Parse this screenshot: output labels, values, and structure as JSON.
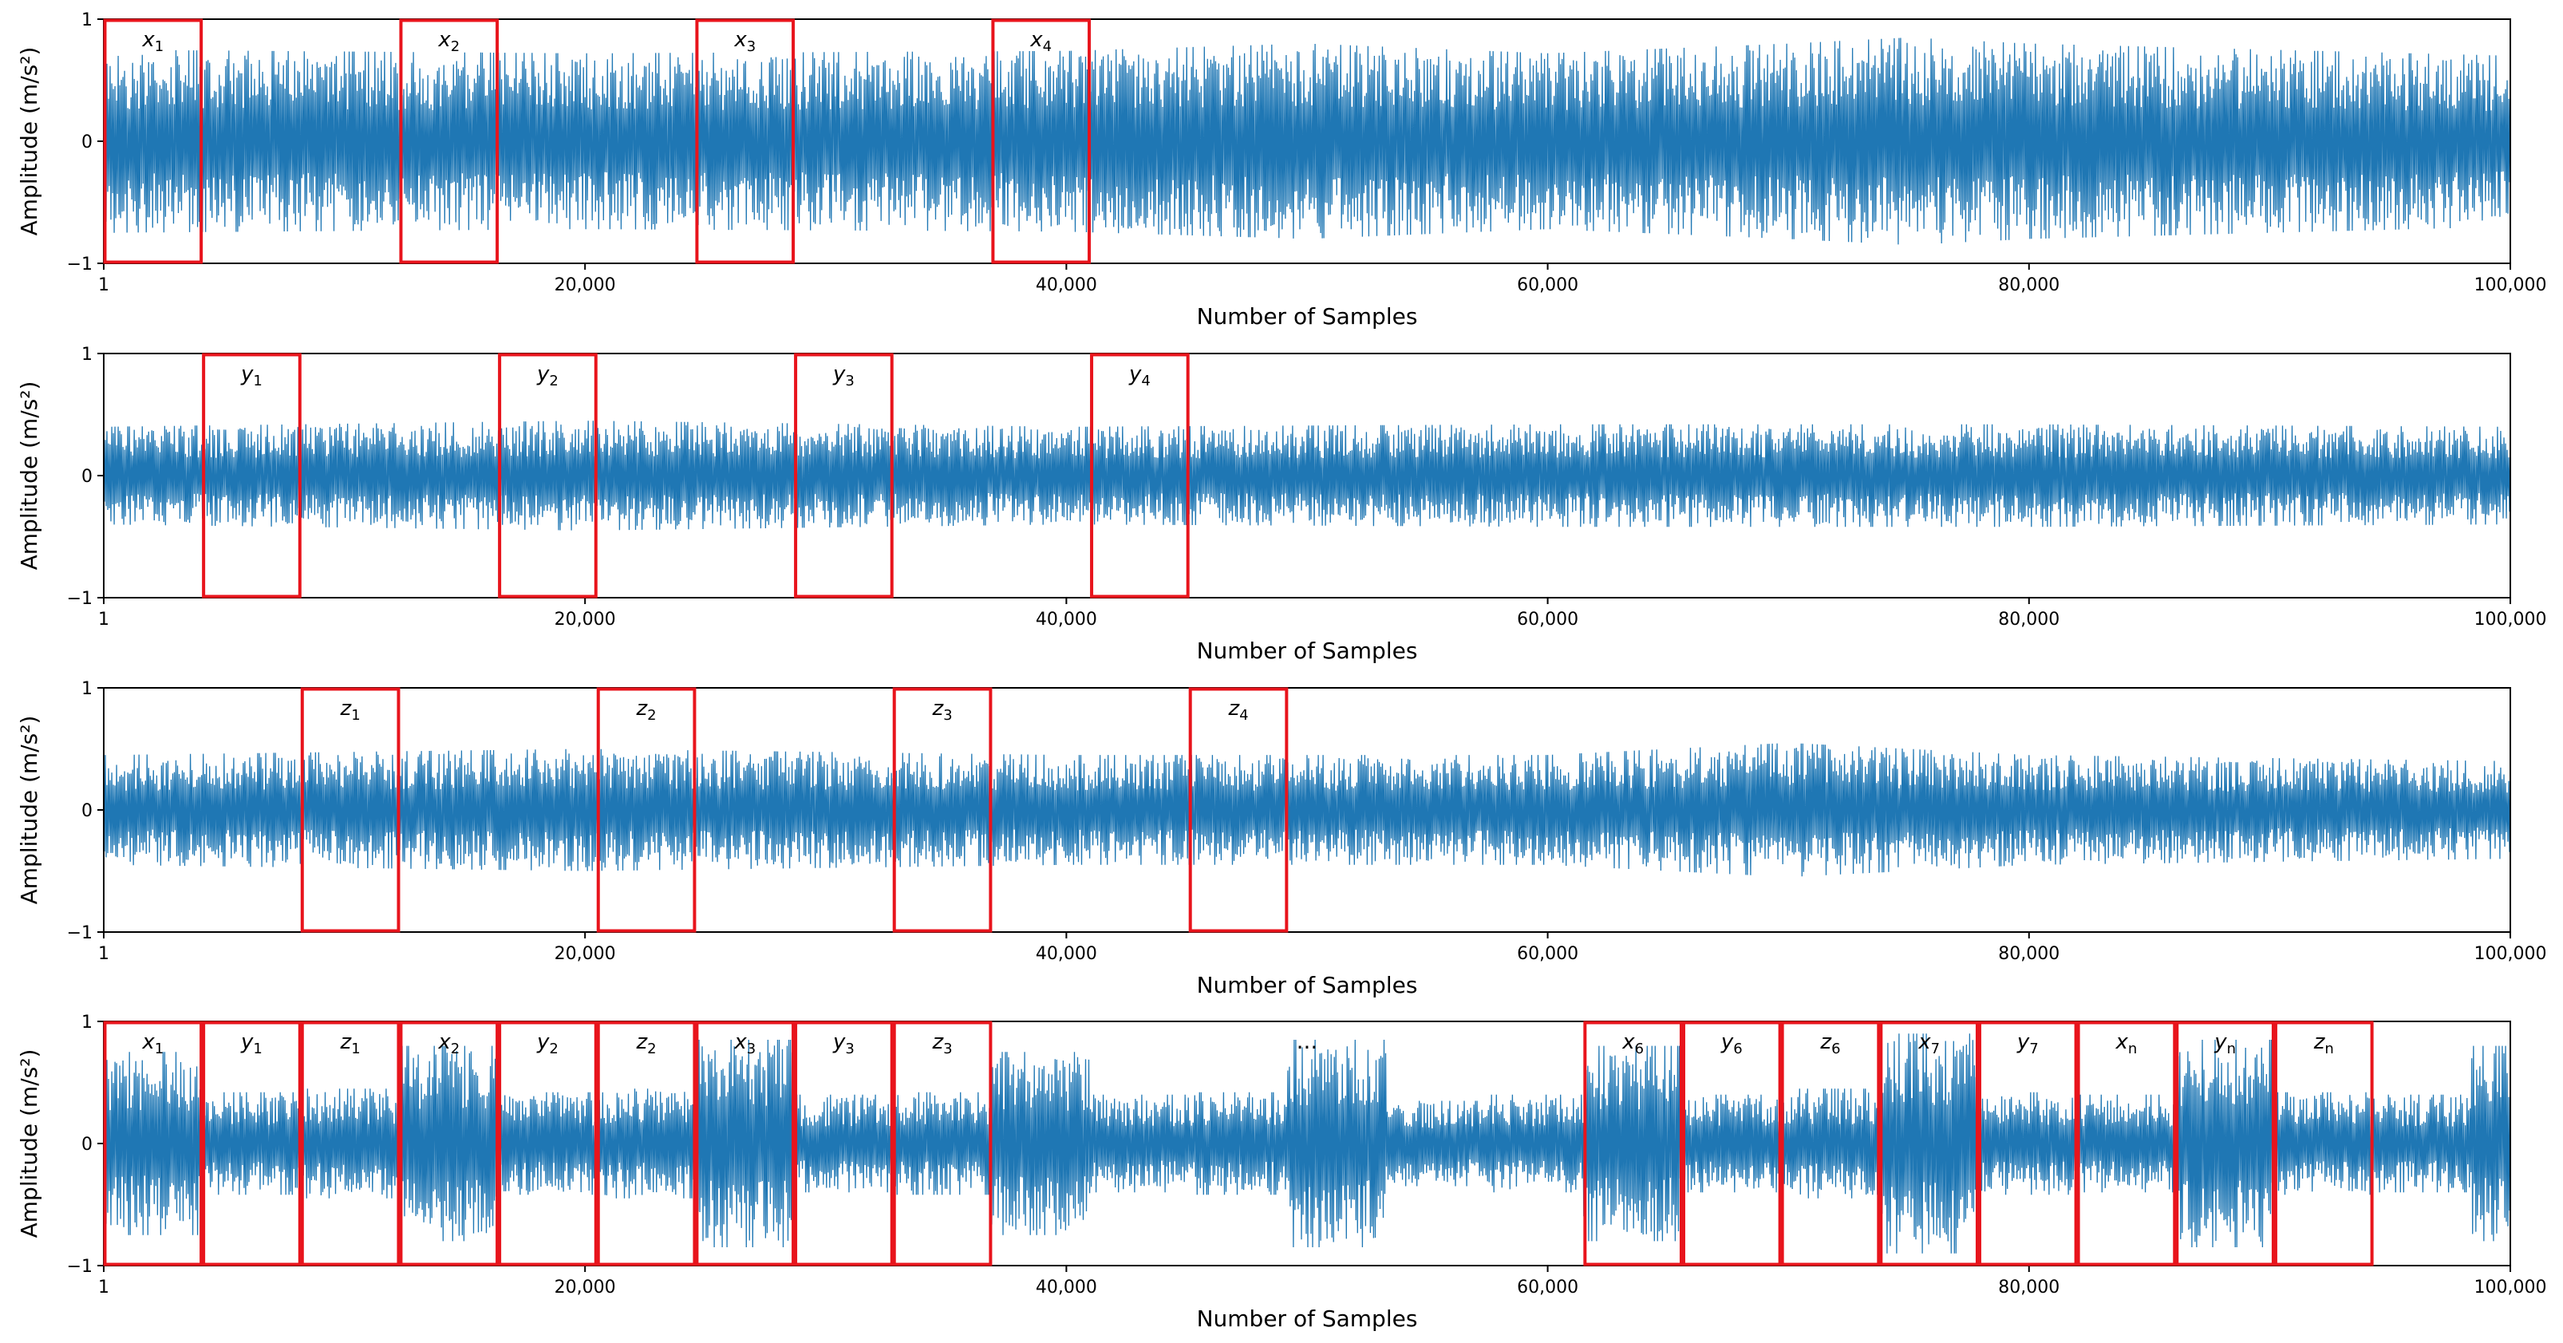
{
  "colors": {
    "signal": "#1f77b4",
    "box": "#e8141c",
    "axes": "#000000"
  },
  "chart_data": [
    {
      "type": "line",
      "title": "",
      "xlabel": "Number of Samples",
      "ylabel": "Amplitude (m/s²)",
      "xlim": [
        1,
        100000
      ],
      "ylim": [
        -1,
        1
      ],
      "xticks": [
        "1",
        "20,000",
        "40,000",
        "60,000",
        "80,000",
        "100,000"
      ],
      "xtick_values": [
        1,
        20000,
        40000,
        60000,
        80000,
        100000
      ],
      "yticks": [
        "−1",
        "0",
        "1"
      ],
      "ytick_values": [
        -1,
        0,
        1
      ],
      "signal_envelope": {
        "x": [
          1,
          20000,
          40000,
          50000,
          60000,
          70000,
          75000,
          80000,
          90000,
          100000
        ],
        "amp": [
          0.75,
          0.72,
          0.74,
          0.8,
          0.72,
          0.8,
          0.85,
          0.8,
          0.75,
          0.7
        ]
      },
      "windows": [
        {
          "var": "x",
          "sub": "1",
          "start": 1,
          "end": 4100
        },
        {
          "var": "x",
          "sub": "2",
          "start": 12300,
          "end": 16400
        },
        {
          "var": "x",
          "sub": "3",
          "start": 24600,
          "end": 28700
        },
        {
          "var": "x",
          "sub": "4",
          "start": 36900,
          "end": 41000
        }
      ]
    },
    {
      "type": "line",
      "title": "",
      "xlabel": "Number of Samples",
      "ylabel": "Amplitude (m/s²)",
      "xlim": [
        1,
        100000
      ],
      "ylim": [
        -1,
        1
      ],
      "xticks": [
        "1",
        "20,000",
        "40,000",
        "60,000",
        "80,000",
        "100,000"
      ],
      "xtick_values": [
        1,
        20000,
        40000,
        60000,
        80000,
        100000
      ],
      "yticks": [
        "−1",
        "0",
        "1"
      ],
      "ytick_values": [
        -1,
        0,
        1
      ],
      "signal_envelope": {
        "x": [
          1,
          20000,
          40000,
          60000,
          80000,
          100000
        ],
        "amp": [
          0.4,
          0.45,
          0.4,
          0.42,
          0.42,
          0.4
        ]
      },
      "windows": [
        {
          "var": "y",
          "sub": "1",
          "start": 4100,
          "end": 8200
        },
        {
          "var": "y",
          "sub": "2",
          "start": 16400,
          "end": 20500
        },
        {
          "var": "y",
          "sub": "3",
          "start": 28700,
          "end": 32800
        },
        {
          "var": "y",
          "sub": "4",
          "start": 41000,
          "end": 45100
        }
      ]
    },
    {
      "type": "line",
      "title": "",
      "xlabel": "Number of Samples",
      "ylabel": "Amplitude (m/s²)",
      "xlim": [
        1,
        100000
      ],
      "ylim": [
        -1,
        1
      ],
      "xticks": [
        "1",
        "20,000",
        "40,000",
        "60,000",
        "80,000",
        "100,000"
      ],
      "xtick_values": [
        1,
        20000,
        40000,
        60000,
        80000,
        100000
      ],
      "yticks": [
        "−1",
        "0",
        "1"
      ],
      "ytick_values": [
        -1,
        0,
        1
      ],
      "signal_envelope": {
        "x": [
          1,
          20000,
          40000,
          60000,
          70000,
          80000,
          100000
        ],
        "amp": [
          0.45,
          0.5,
          0.45,
          0.45,
          0.55,
          0.45,
          0.4
        ]
      },
      "windows": [
        {
          "var": "z",
          "sub": "1",
          "start": 8200,
          "end": 12300
        },
        {
          "var": "z",
          "sub": "2",
          "start": 20500,
          "end": 24600
        },
        {
          "var": "z",
          "sub": "3",
          "start": 32800,
          "end": 36900
        },
        {
          "var": "z",
          "sub": "4",
          "start": 45100,
          "end": 49200
        }
      ]
    },
    {
      "type": "line",
      "title": "",
      "xlabel": "Number of Samples",
      "ylabel": "Amplitude (m/s²)",
      "xlim": [
        1,
        100000
      ],
      "ylim": [
        -1,
        1
      ],
      "xticks": [
        "1",
        "20,000",
        "40,000",
        "60,000",
        "80,000",
        "100,000"
      ],
      "xtick_values": [
        1,
        20000,
        40000,
        60000,
        80000,
        100000
      ],
      "yticks": [
        "−1",
        "0",
        "1"
      ],
      "ytick_values": [
        -1,
        0,
        1
      ],
      "ellipsis": {
        "text": "...",
        "x": 50000
      },
      "segments": [
        {
          "start": 1,
          "end": 4100,
          "amp": 0.75
        },
        {
          "start": 4100,
          "end": 8200,
          "amp": 0.42
        },
        {
          "start": 8200,
          "end": 12300,
          "amp": 0.45
        },
        {
          "start": 12300,
          "end": 16400,
          "amp": 0.8
        },
        {
          "start": 16400,
          "end": 20500,
          "amp": 0.42
        },
        {
          "start": 20500,
          "end": 24600,
          "amp": 0.45
        },
        {
          "start": 24600,
          "end": 28700,
          "amp": 0.85
        },
        {
          "start": 28700,
          "end": 32800,
          "amp": 0.4
        },
        {
          "start": 32800,
          "end": 36900,
          "amp": 0.42
        },
        {
          "start": 36900,
          "end": 41000,
          "amp": 0.75
        },
        {
          "start": 41000,
          "end": 45100,
          "amp": 0.4
        },
        {
          "start": 45100,
          "end": 49200,
          "amp": 0.42
        },
        {
          "start": 49200,
          "end": 53300,
          "amp": 0.85
        },
        {
          "start": 53300,
          "end": 57400,
          "amp": 0.35
        },
        {
          "start": 57400,
          "end": 61500,
          "amp": 0.4
        },
        {
          "start": 61500,
          "end": 65600,
          "amp": 0.8
        },
        {
          "start": 65600,
          "end": 69700,
          "amp": 0.4
        },
        {
          "start": 69700,
          "end": 73800,
          "amp": 0.45
        },
        {
          "start": 73800,
          "end": 77900,
          "amp": 0.9
        },
        {
          "start": 77900,
          "end": 82000,
          "amp": 0.42
        },
        {
          "start": 82000,
          "end": 86100,
          "amp": 0.4
        },
        {
          "start": 86100,
          "end": 90200,
          "amp": 0.85
        },
        {
          "start": 90200,
          "end": 94300,
          "amp": 0.42
        },
        {
          "start": 94300,
          "end": 98400,
          "amp": 0.4
        },
        {
          "start": 98400,
          "end": 100000,
          "amp": 0.8
        }
      ],
      "windows": [
        {
          "var": "x",
          "sub": "1",
          "start": 1,
          "end": 4100
        },
        {
          "var": "y",
          "sub": "1",
          "start": 4100,
          "end": 8200
        },
        {
          "var": "z",
          "sub": "1",
          "start": 8200,
          "end": 12300
        },
        {
          "var": "x",
          "sub": "2",
          "start": 12300,
          "end": 16400
        },
        {
          "var": "y",
          "sub": "2",
          "start": 16400,
          "end": 20500
        },
        {
          "var": "z",
          "sub": "2",
          "start": 20500,
          "end": 24600
        },
        {
          "var": "x",
          "sub": "3",
          "start": 24600,
          "end": 28700
        },
        {
          "var": "y",
          "sub": "3",
          "start": 28700,
          "end": 32800
        },
        {
          "var": "z",
          "sub": "3",
          "start": 32800,
          "end": 36900
        },
        {
          "var": "x",
          "sub": "6",
          "start": 61500,
          "end": 65600
        },
        {
          "var": "y",
          "sub": "6",
          "start": 65600,
          "end": 69700
        },
        {
          "var": "z",
          "sub": "6",
          "start": 69700,
          "end": 73800
        },
        {
          "var": "x",
          "sub": "7",
          "start": 73800,
          "end": 77900
        },
        {
          "var": "y",
          "sub": "7",
          "start": 77900,
          "end": 82000
        },
        {
          "var": "x",
          "sub": "n",
          "start": 82000,
          "end": 86100
        },
        {
          "var": "y",
          "sub": "n",
          "start": 86100,
          "end": 90200
        },
        {
          "var": "z",
          "sub": "n",
          "start": 90200,
          "end": 94300
        }
      ]
    }
  ]
}
